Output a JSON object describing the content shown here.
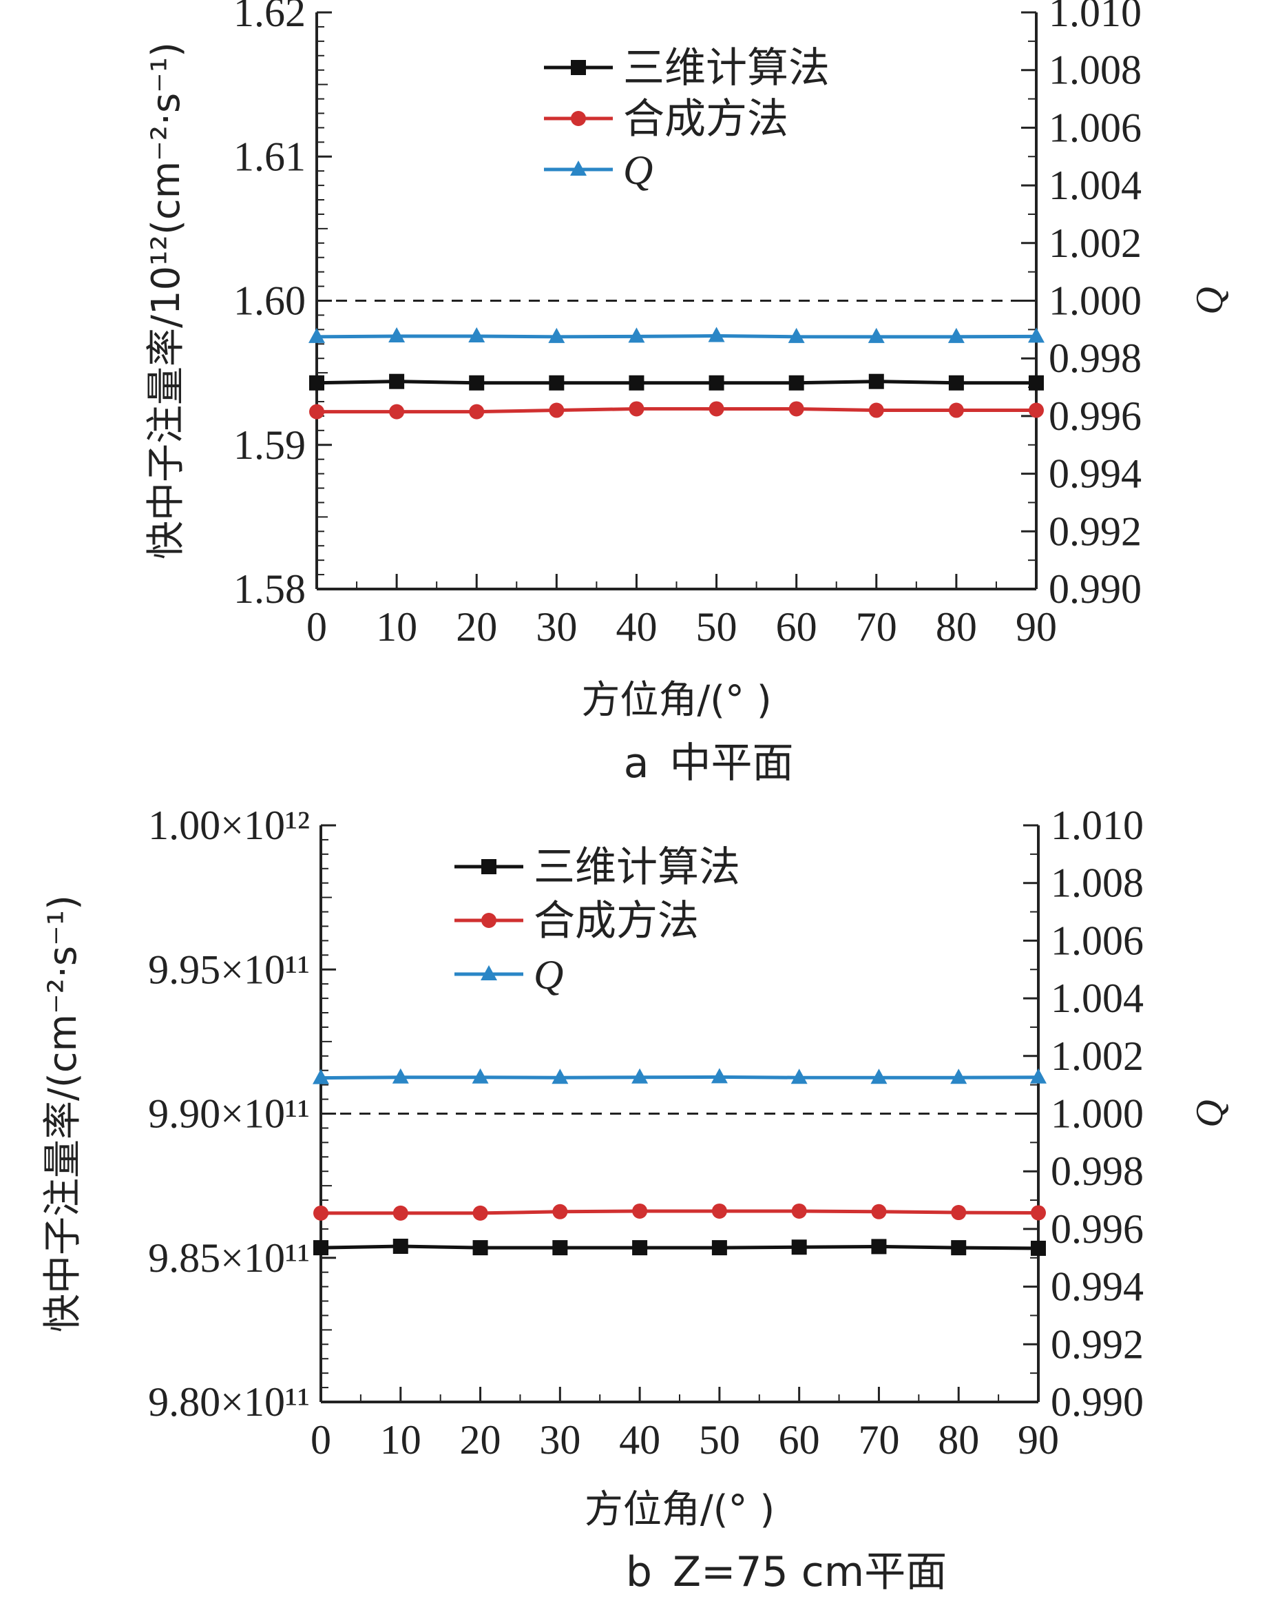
{
  "chart_data": [
    {
      "type": "line",
      "caption_letter": "a",
      "caption": "中平面",
      "xlabel": "方位角/(°  )",
      "ylabel": "快中子注量率/10¹²(cm⁻²·s⁻¹)",
      "y2label": "Q",
      "x": [
        0,
        10,
        20,
        30,
        40,
        50,
        60,
        70,
        80,
        90
      ],
      "xlim": [
        0,
        90
      ],
      "xticks": [
        "0",
        "10",
        "20",
        "30",
        "40",
        "50",
        "60",
        "70",
        "80",
        "90"
      ],
      "ylim": [
        1.58,
        1.62
      ],
      "yticks": [
        {
          "v": 1.58,
          "label": "1.58"
        },
        {
          "v": 1.59,
          "label": "1.59"
        },
        {
          "v": 1.6,
          "label": "1.60"
        },
        {
          "v": 1.61,
          "label": "1.61"
        },
        {
          "v": 1.62,
          "label": "1.62"
        }
      ],
      "y2lim": [
        0.99,
        1.01
      ],
      "y2ticks": [
        {
          "v": 0.99,
          "label": "0.990"
        },
        {
          "v": 0.992,
          "label": "0.992"
        },
        {
          "v": 0.994,
          "label": "0.994"
        },
        {
          "v": 0.996,
          "label": "0.996"
        },
        {
          "v": 0.998,
          "label": "0.998"
        },
        {
          "v": 1.0,
          "label": "1.000"
        },
        {
          "v": 1.002,
          "label": "1.002"
        },
        {
          "v": 1.004,
          "label": "1.004"
        },
        {
          "v": 1.006,
          "label": "1.006"
        },
        {
          "v": 1.008,
          "label": "1.008"
        },
        {
          "v": 1.01,
          "label": "1.010"
        }
      ],
      "reference_line": {
        "axis": "y2",
        "value": 1.0,
        "style": "dashed"
      },
      "series": [
        {
          "name": "三维计算法",
          "axis": "y",
          "color": "#111111",
          "marker": "square",
          "values": [
            1.5943,
            1.5944,
            1.5943,
            1.5943,
            1.5943,
            1.5943,
            1.5943,
            1.5944,
            1.5943,
            1.5943
          ]
        },
        {
          "name": "合成方法",
          "axis": "y",
          "color": "#d03030",
          "marker": "circle",
          "values": [
            1.5923,
            1.5923,
            1.5923,
            1.5924,
            1.5925,
            1.5925,
            1.5925,
            1.5924,
            1.5924,
            1.5924
          ]
        },
        {
          "name": "Q",
          "axis": "y2",
          "color": "#2a86c6",
          "marker": "triangle",
          "values": [
            0.99875,
            0.99877,
            0.99877,
            0.99875,
            0.99876,
            0.99878,
            0.99875,
            0.99875,
            0.99875,
            0.99876
          ]
        }
      ],
      "legend": "top"
    },
    {
      "type": "line",
      "caption_letter": "b",
      "caption": "Z=75 cm平面",
      "xlabel": "方位角/(°  )",
      "ylabel": "快中子注量率/(cm⁻²·s⁻¹)",
      "y2label": "Q",
      "x": [
        0,
        10,
        20,
        30,
        40,
        50,
        60,
        70,
        80,
        90
      ],
      "xlim": [
        0,
        90
      ],
      "xticks": [
        "0",
        "10",
        "20",
        "30",
        "40",
        "50",
        "60",
        "70",
        "80",
        "90"
      ],
      "ylim": [
        980000000000,
        1000000000000
      ],
      "yticks": [
        {
          "v": 980000000000,
          "label": "9.80×10¹¹"
        },
        {
          "v": 985000000000,
          "label": "9.85×10¹¹"
        },
        {
          "v": 990000000000,
          "label": "9.90×10¹¹"
        },
        {
          "v": 995000000000,
          "label": "9.95×10¹¹"
        },
        {
          "v": 1000000000000,
          "label": "1.00×10¹²"
        }
      ],
      "y2lim": [
        0.99,
        1.01
      ],
      "y2ticks": [
        {
          "v": 0.99,
          "label": "0.990"
        },
        {
          "v": 0.992,
          "label": "0.992"
        },
        {
          "v": 0.994,
          "label": "0.994"
        },
        {
          "v": 0.996,
          "label": "0.996"
        },
        {
          "v": 0.998,
          "label": "0.998"
        },
        {
          "v": 1.0,
          "label": "1.000"
        },
        {
          "v": 1.002,
          "label": "1.002"
        },
        {
          "v": 1.004,
          "label": "1.004"
        },
        {
          "v": 1.006,
          "label": "1.006"
        },
        {
          "v": 1.008,
          "label": "1.008"
        },
        {
          "v": 1.01,
          "label": "1.010"
        }
      ],
      "reference_line": {
        "axis": "y2",
        "value": 1.0,
        "style": "dashed"
      },
      "series": [
        {
          "name": "三维计算法",
          "axis": "y",
          "color": "#111111",
          "marker": "square",
          "values": [
            985350000000,
            985400000000,
            985350000000,
            985350000000,
            985350000000,
            985350000000,
            985370000000,
            985390000000,
            985350000000,
            985330000000
          ]
        },
        {
          "name": "合成方法",
          "axis": "y",
          "color": "#d03030",
          "marker": "circle",
          "values": [
            986550000000,
            986550000000,
            986550000000,
            986600000000,
            986620000000,
            986620000000,
            986620000000,
            986600000000,
            986570000000,
            986560000000
          ]
        },
        {
          "name": "Q",
          "axis": "y2",
          "color": "#2a86c6",
          "marker": "triangle",
          "values": [
            1.00124,
            1.00126,
            1.00126,
            1.00125,
            1.00126,
            1.00127,
            1.00125,
            1.00125,
            1.00125,
            1.00126
          ]
        }
      ],
      "legend": "top-left"
    }
  ]
}
